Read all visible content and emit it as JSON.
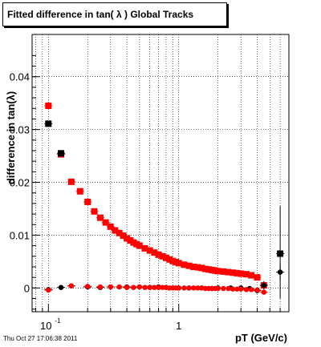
{
  "title": "Fitted difference in tan( λ )  Global Tracks",
  "footer": "Thu Oct 27 17:06:38 2011",
  "colors": {
    "upper_series": "#ff0000",
    "lower_series": "#000000",
    "grid": "#000000"
  },
  "chart_data": {
    "type": "scatter",
    "title": "Fitted difference in tan( λ )  Global Tracks",
    "xlabel": "pT (GeV/c)",
    "ylabel": "difference in tan(λ)",
    "x_scale": "log",
    "xlim": [
      0.075,
      7.0
    ],
    "ylim": [
      -0.0045,
      0.048
    ],
    "grid": true,
    "x_ticks": [
      {
        "value": 0.1,
        "label": "10",
        "exponent": "-1"
      },
      {
        "value": 1,
        "label": "1",
        "exponent": ""
      }
    ],
    "y_ticks": [
      {
        "value": 0,
        "label": "0"
      },
      {
        "value": 0.01,
        "label": "0.01"
      },
      {
        "value": 0.02,
        "label": "0.02"
      },
      {
        "value": 0.03,
        "label": "0.03"
      },
      {
        "value": 0.04,
        "label": "0.04"
      }
    ],
    "series": [
      {
        "marker": "square",
        "color": "#ff0000",
        "x": [
          0.1,
          0.125,
          0.15,
          0.175,
          0.2,
          0.225,
          0.25,
          0.275,
          0.3,
          0.325,
          0.35,
          0.375,
          0.4,
          0.425,
          0.45,
          0.475,
          0.5,
          0.55,
          0.6,
          0.65,
          0.7,
          0.75,
          0.8,
          0.85,
          0.9,
          0.95,
          1.0,
          1.1,
          1.2,
          1.3,
          1.4,
          1.5,
          1.6,
          1.7,
          1.8,
          1.9,
          2.0,
          2.2,
          2.4,
          2.6,
          2.8,
          3.0,
          3.3,
          3.6,
          4.0,
          4.5
        ],
        "y": [
          0.0345,
          0.0253,
          0.0201,
          0.0183,
          0.0163,
          0.0145,
          0.0133,
          0.0124,
          0.0116,
          0.0109,
          0.0104,
          0.0099,
          0.0094,
          0.009,
          0.0086,
          0.0083,
          0.008,
          0.0075,
          0.0071,
          0.0067,
          0.0063,
          0.006,
          0.0057,
          0.0054,
          0.0051,
          0.0049,
          0.0047,
          0.0044,
          0.0042,
          0.004,
          0.0039,
          0.0038,
          0.0036,
          0.0035,
          0.0034,
          0.0033,
          0.0032,
          0.0031,
          0.003,
          0.0029,
          0.0028,
          0.0027,
          0.0026,
          0.0024,
          0.002,
          0.0005
        ]
      },
      {
        "marker": "square",
        "color": "#000000",
        "x": [
          0.1,
          0.125,
          6.0
        ],
        "y": [
          0.0311,
          0.0255,
          0.0065
        ]
      },
      {
        "marker": "circle",
        "color": "#000000",
        "x": [
          0.1,
          0.125,
          0.15,
          0.2,
          0.25,
          0.3,
          0.4,
          0.5,
          0.6,
          0.7,
          0.8,
          1.0,
          1.2,
          1.5,
          1.8,
          2.0,
          2.5,
          3.0,
          3.5,
          4.0,
          4.5,
          6.0
        ],
        "y": [
          -0.0003,
          0.0001,
          0.0004,
          0.0002,
          0.0001,
          0.0002,
          0.0002,
          0.0002,
          0.0001,
          0.0002,
          0.0001,
          0.0,
          0.0,
          0.0,
          -0.0001,
          0.0,
          0.0,
          0.0,
          -0.0001,
          -0.0005,
          0.0005,
          0.003
        ],
        "err": [
          0.0005,
          0.0002,
          0.0002,
          0.0002,
          0.0002,
          0.0002,
          0.0002,
          0.0002,
          0.0002,
          0.0002,
          0.0002,
          0.0002,
          0.0002,
          0.0002,
          0.0002,
          0.0002,
          0.0002,
          0.0002,
          0.0003,
          0.0005,
          0.0008,
          0.0015
        ]
      },
      {
        "marker": "circle",
        "color": "#ff0000",
        "x": [
          0.1,
          0.15,
          0.2,
          0.25,
          0.3,
          0.35,
          0.4,
          0.45,
          0.5,
          0.55,
          0.6,
          0.65,
          0.7,
          0.75,
          0.8,
          0.85,
          0.9,
          0.95,
          1.0,
          1.1,
          1.2,
          1.3,
          1.4,
          1.5,
          1.6,
          1.7,
          1.8,
          1.9,
          2.0,
          2.2,
          2.4,
          2.6,
          2.8,
          3.0,
          3.3,
          3.6,
          4.0,
          4.5
        ],
        "y": [
          -0.0004,
          0.0004,
          0.0003,
          0.0002,
          0.0002,
          0.0002,
          0.0001,
          0.0001,
          0.0002,
          0.0001,
          0.0001,
          0.0001,
          0.0001,
          0.0001,
          0.0001,
          0.0,
          0.0,
          0.0,
          0.0,
          0.0,
          0.0,
          0.0,
          0.0,
          0.0,
          -0.0001,
          -0.0001,
          -0.0001,
          -0.0001,
          -0.0001,
          -0.0001,
          -0.0001,
          -0.0002,
          -0.0002,
          -0.0002,
          -0.0003,
          -0.0003,
          -0.0004,
          -0.0008
        ]
      }
    ]
  }
}
